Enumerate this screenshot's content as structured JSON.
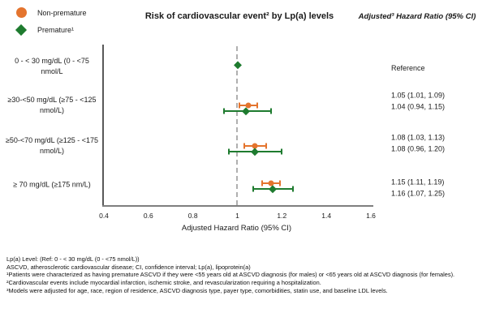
{
  "legend": {
    "items": [
      {
        "label": "Non-premature",
        "marker": "circle",
        "color": "#E4742E"
      },
      {
        "label": "Premature¹",
        "marker": "diamond",
        "color": "#1E7B2F"
      }
    ]
  },
  "header": {
    "title": "Risk of cardiovascular event² by Lp(a) levels",
    "right_title": "Adjusted³ Hazard Ratio (95% CI)"
  },
  "chart_data": {
    "type": "forest",
    "title": "Risk of cardiovascular event by Lp(a) levels",
    "xlabel": "Adjusted Hazard Ratio (95% CI)",
    "xlim": [
      0.4,
      1.6
    ],
    "xticks": [
      "0.4",
      "0.6",
      "0.8",
      "1",
      "1.2",
      "1.4",
      "1.6"
    ],
    "xtick_values": [
      0.4,
      0.6,
      0.8,
      1.0,
      1.2,
      1.4,
      1.6
    ],
    "reference_line": 1.0,
    "grid": false,
    "legend_position": "top-left",
    "series_colors": {
      "Non-premature": "#E4742E",
      "Premature": "#1E7B2F"
    },
    "rows": [
      {
        "label": "0 - < 30 mg/dL (0 - <75 nmol/L",
        "annotation_lines": [
          "Reference"
        ],
        "points": [
          {
            "series": "Premature",
            "marker": "diamond",
            "hr": 1.0,
            "lo": null,
            "hi": null
          }
        ]
      },
      {
        "label": "≥30-<50 mg/dL (≥75 - <125 nmol/L)",
        "annotation_lines": [
          "1.05 (1.01, 1.09)",
          "1.04 (0.94, 1.15)"
        ],
        "points": [
          {
            "series": "Non-premature",
            "marker": "circle",
            "hr": 1.05,
            "lo": 1.01,
            "hi": 1.09
          },
          {
            "series": "Premature",
            "marker": "diamond",
            "hr": 1.04,
            "lo": 0.94,
            "hi": 1.15
          }
        ]
      },
      {
        "label": "≥50-<70 mg/dL (≥125 - <175 nmol/L)",
        "annotation_lines": [
          "1.08 (1.03, 1.13)",
          "1.08 (0.96, 1.20)"
        ],
        "points": [
          {
            "series": "Non-premature",
            "marker": "circle",
            "hr": 1.08,
            "lo": 1.03,
            "hi": 1.13
          },
          {
            "series": "Premature",
            "marker": "diamond",
            "hr": 1.08,
            "lo": 0.96,
            "hi": 1.2
          }
        ]
      },
      {
        "label": "≥ 70 mg/dL (≥175 nm/L)",
        "annotation_lines": [
          "1.15 (1.11, 1.19)",
          "1.16 (1.07, 1.25)"
        ],
        "points": [
          {
            "series": "Non-premature",
            "marker": "circle",
            "hr": 1.15,
            "lo": 1.11,
            "hi": 1.19
          },
          {
            "series": "Premature",
            "marker": "diamond",
            "hr": 1.16,
            "lo": 1.07,
            "hi": 1.25
          }
        ]
      }
    ]
  },
  "footnotes": [
    "Lp(a) Level: (Ref: 0 - < 30 mg/dL (0 - <75 nmol/L))",
    "ASCVD, atherosclerotic cardiovascular disease; CI, confidence interval; Lp(a), lipoprotein(a)",
    "¹Patients were characterized as having premature ASCVD if they were <55 years old at ASCVD diagnosis (for males) or <65 years old at ASCVD diagnosis (for females).",
    "²Cardiovascular events include myocardial infarction, ischemic stroke, and revascularization requiring a hospitalization.",
    "³Models were adjusted for age, race, region of residence, ASCVD diagnosis type, payer type, comorbidities, statin use, and baseline LDL levels."
  ],
  "colors": {
    "non_premature": "#E4742E",
    "premature": "#1E7B2F",
    "axis": "#7F7F7F",
    "reference_dash": "#B0B0B0",
    "text": "#1A1A1A"
  }
}
